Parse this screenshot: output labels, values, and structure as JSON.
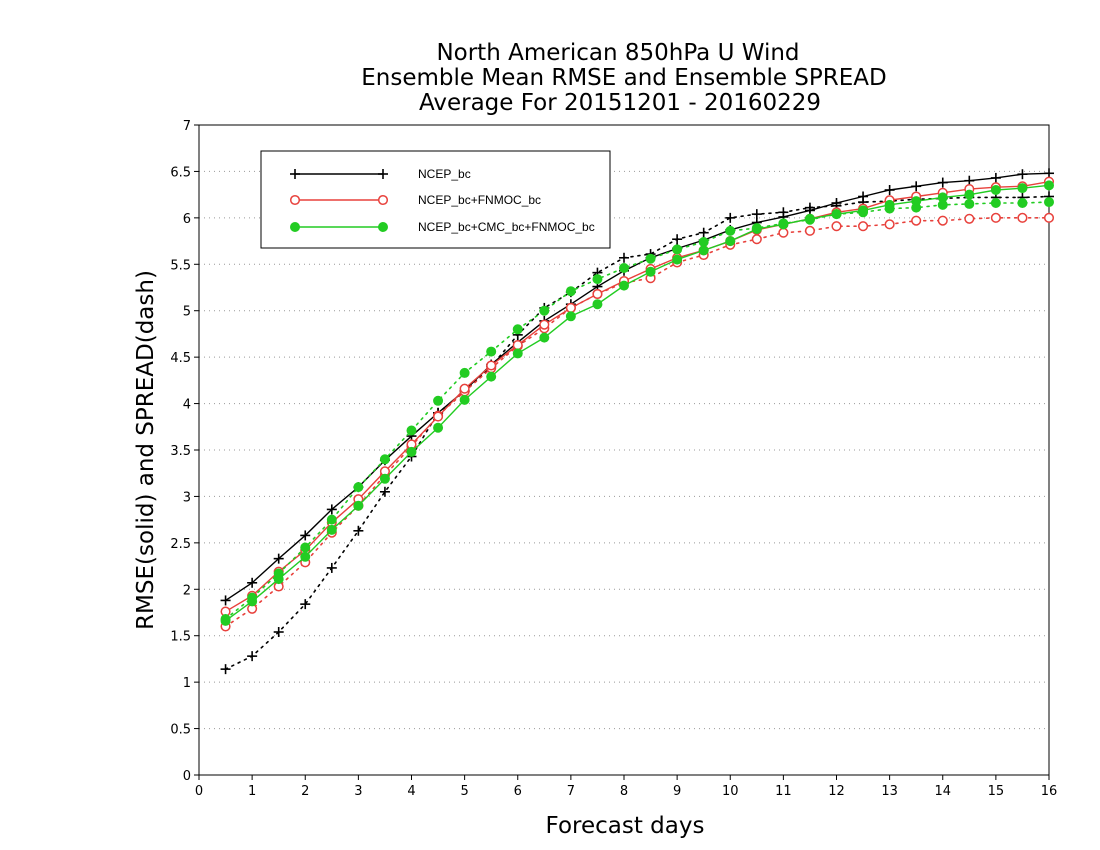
{
  "chart_data": {
    "type": "line",
    "title_lines": [
      "North American 850hPa U Wind",
      "Ensemble Mean RMSE and Ensemble SPREAD",
      "Average For 20151201 - 20160229"
    ],
    "xlabel": "Forecast days",
    "ylabel": "RMSE(solid) and SPREAD(dash)",
    "xlim": [
      0,
      16
    ],
    "ylim": [
      0,
      7
    ],
    "x_ticks": [
      "0",
      "1",
      "2",
      "3",
      "4",
      "5",
      "6",
      "7",
      "8",
      "9",
      "10",
      "11",
      "12",
      "13",
      "14",
      "15",
      "16"
    ],
    "y_ticks": [
      "0",
      "0.5",
      "1",
      "1.5",
      "2",
      "2.5",
      "3",
      "3.5",
      "4",
      "4.5",
      "5",
      "5.5",
      "6",
      "6.5",
      "7"
    ],
    "grid": true,
    "legend_position": "top-left",
    "x": [
      0.5,
      1,
      1.5,
      2,
      2.5,
      3,
      3.5,
      4,
      4.5,
      5,
      5.5,
      6,
      6.5,
      7,
      7.5,
      8,
      8.5,
      9,
      9.5,
      10,
      10.5,
      11,
      11.5,
      12,
      12.5,
      13,
      13.5,
      14,
      14.5,
      15,
      15.5,
      16
    ],
    "series": [
      {
        "name": "NCEP_bc",
        "color": "#000000",
        "marker": "plus",
        "rmse": [
          1.88,
          2.07,
          2.33,
          2.58,
          2.86,
          3.1,
          3.39,
          3.65,
          3.9,
          4.14,
          4.42,
          4.66,
          4.89,
          5.07,
          5.26,
          5.43,
          5.57,
          5.67,
          5.76,
          5.87,
          5.95,
          6.01,
          6.08,
          6.16,
          6.23,
          6.3,
          6.34,
          6.38,
          6.4,
          6.43,
          6.47,
          6.48
        ],
        "spread": [
          1.14,
          1.28,
          1.54,
          1.84,
          2.23,
          2.63,
          3.05,
          3.43,
          3.9,
          4.13,
          4.4,
          4.74,
          5.03,
          5.2,
          5.41,
          5.57,
          5.61,
          5.77,
          5.84,
          6.0,
          6.04,
          6.06,
          6.11,
          6.13,
          6.17,
          6.18,
          6.2,
          6.21,
          6.22,
          6.22,
          6.22,
          6.23
        ]
      },
      {
        "name": "NCEP_bc+FNMOC_bc",
        "color": "#e8413c",
        "marker": "open-circle",
        "rmse": [
          1.76,
          1.93,
          2.19,
          2.42,
          2.72,
          2.97,
          3.27,
          3.56,
          3.86,
          4.16,
          4.41,
          4.63,
          4.85,
          5.03,
          5.18,
          5.32,
          5.45,
          5.57,
          5.65,
          5.75,
          5.87,
          5.93,
          5.99,
          6.06,
          6.1,
          6.19,
          6.23,
          6.27,
          6.31,
          6.33,
          6.34,
          6.39
        ],
        "spread": [
          1.6,
          1.79,
          2.03,
          2.29,
          2.61,
          2.9,
          3.23,
          3.54,
          3.87,
          4.13,
          4.38,
          4.62,
          4.81,
          5.03,
          5.18,
          5.3,
          5.35,
          5.52,
          5.6,
          5.71,
          5.77,
          5.84,
          5.86,
          5.91,
          5.91,
          5.93,
          5.97,
          5.97,
          5.99,
          6.0,
          6.0,
          6.0
        ]
      },
      {
        "name": "NCEP_bc+CMC_bc+FNMOC_bc",
        "color": "#22cc22",
        "marker": "filled-circle",
        "rmse": [
          1.66,
          1.87,
          2.11,
          2.35,
          2.64,
          2.9,
          3.19,
          3.48,
          3.74,
          4.04,
          4.29,
          4.54,
          4.71,
          4.94,
          5.07,
          5.27,
          5.42,
          5.55,
          5.65,
          5.75,
          5.88,
          5.93,
          5.99,
          6.04,
          6.08,
          6.14,
          6.18,
          6.22,
          6.25,
          6.3,
          6.32,
          6.35
        ],
        "spread": [
          1.68,
          1.91,
          2.17,
          2.45,
          2.75,
          3.1,
          3.4,
          3.71,
          4.03,
          4.33,
          4.56,
          4.8,
          5.0,
          5.21,
          5.34,
          5.46,
          5.56,
          5.66,
          5.74,
          5.86,
          5.89,
          5.94,
          5.98,
          6.04,
          6.06,
          6.1,
          6.11,
          6.14,
          6.15,
          6.16,
          6.16,
          6.17
        ]
      }
    ]
  }
}
